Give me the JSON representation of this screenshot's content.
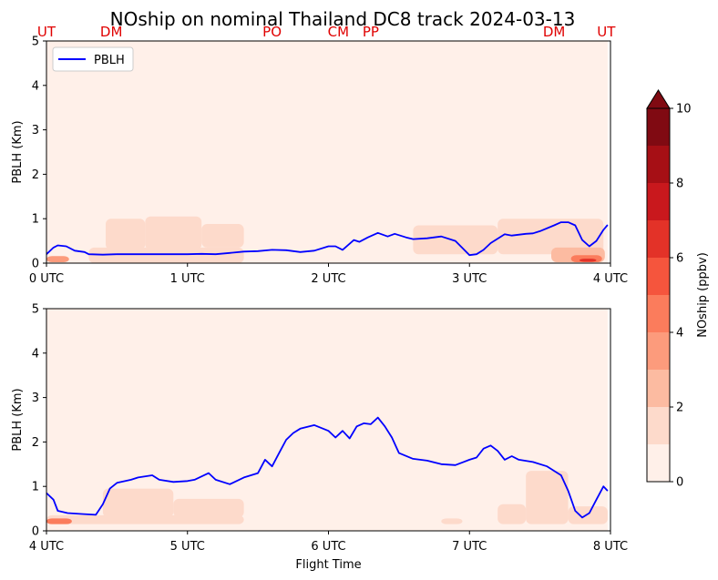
{
  "chart_data": {
    "type": "area",
    "title": "NOship on nominal Thailand DC8 track 2024-03-13",
    "colorbar": {
      "label": "NOship (ppbv)",
      "range": [
        0,
        10
      ],
      "ticks": [
        "0",
        "2",
        "4",
        "6",
        "8",
        "10"
      ],
      "colors": [
        "#fff0e9",
        "#fddacb",
        "#fcbba1",
        "#fc9b7c",
        "#fb7c5c",
        "#f5553d",
        "#e33228",
        "#c9181d",
        "#a60f15",
        "#800a12"
      ],
      "extend": "max"
    },
    "panels": [
      {
        "ylabel": "PBLH (Km)",
        "xlabel": "",
        "ylim": [
          0,
          5
        ],
        "yticks": [
          "0",
          "1",
          "2",
          "3",
          "4",
          "5"
        ],
        "xlim_hours": [
          0,
          4
        ],
        "xticks": [
          "0 UTC",
          "1 UTC",
          "2 UTC",
          "3 UTC",
          "4 UTC"
        ],
        "legend": {
          "location": "top-left",
          "entries": [
            "PBLH"
          ]
        },
        "site_labels": [
          {
            "text": "UT",
            "t": 0.0
          },
          {
            "text": "DM",
            "t": 0.46
          },
          {
            "text": "PO",
            "t": 1.6
          },
          {
            "text": "CM",
            "t": 2.07
          },
          {
            "text": "PP",
            "t": 2.3
          },
          {
            "text": "DM",
            "t": 3.6
          },
          {
            "text": "UT",
            "t": 3.97
          }
        ],
        "series": [
          {
            "name": "PBLH",
            "color": "#0000ff",
            "x": [
              0.0,
              0.05,
              0.08,
              0.14,
              0.2,
              0.27,
              0.3,
              0.4,
              0.5,
              0.6,
              0.7,
              0.8,
              0.9,
              1.0,
              1.1,
              1.2,
              1.3,
              1.4,
              1.5,
              1.6,
              1.7,
              1.8,
              1.9,
              2.0,
              2.05,
              2.1,
              2.18,
              2.22,
              2.28,
              2.35,
              2.42,
              2.47,
              2.55,
              2.6,
              2.7,
              2.8,
              2.9,
              3.0,
              3.05,
              3.1,
              3.15,
              3.25,
              3.3,
              3.4,
              3.45,
              3.5,
              3.6,
              3.65,
              3.7,
              3.75,
              3.8,
              3.85,
              3.9,
              3.95,
              3.98
            ],
            "y": [
              0.2,
              0.35,
              0.4,
              0.38,
              0.28,
              0.25,
              0.2,
              0.19,
              0.2,
              0.2,
              0.2,
              0.2,
              0.2,
              0.2,
              0.21,
              0.2,
              0.23,
              0.26,
              0.27,
              0.3,
              0.29,
              0.25,
              0.28,
              0.38,
              0.38,
              0.3,
              0.52,
              0.48,
              0.58,
              0.68,
              0.6,
              0.66,
              0.58,
              0.54,
              0.56,
              0.6,
              0.5,
              0.18,
              0.2,
              0.3,
              0.45,
              0.65,
              0.62,
              0.66,
              0.67,
              0.72,
              0.85,
              0.92,
              0.92,
              0.85,
              0.52,
              0.38,
              0.5,
              0.75,
              0.86
            ]
          }
        ],
        "noship_field": [
          {
            "t0": 0.0,
            "t1": 3.98,
            "z0": 0.0,
            "z1": 5.0,
            "level": 0
          },
          {
            "t0": 0.42,
            "t1": 0.7,
            "z0": 0.3,
            "z1": 1.0,
            "level": 1
          },
          {
            "t0": 0.7,
            "t1": 1.1,
            "z0": 0.3,
            "z1": 1.05,
            "level": 1
          },
          {
            "t0": 1.1,
            "t1": 1.4,
            "z0": 0.35,
            "z1": 0.88,
            "level": 1
          },
          {
            "t0": 0.3,
            "t1": 1.4,
            "z0": 0.0,
            "z1": 0.35,
            "level": 1
          },
          {
            "t0": 2.6,
            "t1": 3.2,
            "z0": 0.2,
            "z1": 0.85,
            "level": 1
          },
          {
            "t0": 3.2,
            "t1": 3.95,
            "z0": 0.2,
            "z1": 1.0,
            "level": 1
          },
          {
            "t0": 0.0,
            "t1": 0.16,
            "z0": 0.02,
            "z1": 0.16,
            "level": 3
          },
          {
            "t0": 3.58,
            "t1": 3.96,
            "z0": 0.02,
            "z1": 0.35,
            "level": 2
          },
          {
            "t0": 3.72,
            "t1": 3.94,
            "z0": 0.02,
            "z1": 0.18,
            "level": 4
          },
          {
            "t0": 3.78,
            "t1": 3.9,
            "z0": 0.03,
            "z1": 0.1,
            "level": 6
          }
        ]
      },
      {
        "ylabel": "PBLH (Km)",
        "xlabel": "Flight Time",
        "ylim": [
          0,
          5
        ],
        "yticks": [
          "0",
          "1",
          "2",
          "3",
          "4",
          "5"
        ],
        "xlim_hours": [
          4,
          8
        ],
        "xticks": [
          "4 UTC",
          "5 UTC",
          "6 UTC",
          "7 UTC",
          "8 UTC"
        ],
        "series": [
          {
            "name": "PBLH",
            "color": "#0000ff",
            "x": [
              4.0,
              4.05,
              4.08,
              4.15,
              4.25,
              4.35,
              4.4,
              4.45,
              4.5,
              4.6,
              4.65,
              4.75,
              4.8,
              4.9,
              5.0,
              5.05,
              5.15,
              5.2,
              5.3,
              5.4,
              5.5,
              5.55,
              5.6,
              5.65,
              5.7,
              5.75,
              5.8,
              5.9,
              6.0,
              6.05,
              6.1,
              6.15,
              6.2,
              6.25,
              6.3,
              6.35,
              6.4,
              6.45,
              6.5,
              6.6,
              6.7,
              6.8,
              6.9,
              7.0,
              7.05,
              7.1,
              7.15,
              7.2,
              7.25,
              7.3,
              7.35,
              7.45,
              7.55,
              7.65,
              7.7,
              7.75,
              7.8,
              7.85,
              7.9,
              7.95,
              7.98
            ],
            "y": [
              0.85,
              0.7,
              0.45,
              0.4,
              0.38,
              0.36,
              0.6,
              0.95,
              1.08,
              1.15,
              1.2,
              1.25,
              1.15,
              1.1,
              1.12,
              1.15,
              1.3,
              1.15,
              1.05,
              1.2,
              1.3,
              1.6,
              1.45,
              1.75,
              2.05,
              2.2,
              2.3,
              2.38,
              2.25,
              2.1,
              2.25,
              2.08,
              2.35,
              2.42,
              2.4,
              2.55,
              2.35,
              2.1,
              1.75,
              1.62,
              1.58,
              1.5,
              1.48,
              1.6,
              1.65,
              1.85,
              1.92,
              1.8,
              1.6,
              1.68,
              1.6,
              1.55,
              1.45,
              1.25,
              0.9,
              0.45,
              0.3,
              0.4,
              0.7,
              1.0,
              0.9
            ]
          }
        ],
        "noship_field": [
          {
            "t0": 4.0,
            "t1": 7.98,
            "z0": 0.0,
            "z1": 5.0,
            "level": 0
          },
          {
            "t0": 4.0,
            "t1": 5.4,
            "z0": 0.15,
            "z1": 0.35,
            "level": 1
          },
          {
            "t0": 4.4,
            "t1": 4.9,
            "z0": 0.3,
            "z1": 0.95,
            "level": 1
          },
          {
            "t0": 4.9,
            "t1": 5.4,
            "z0": 0.3,
            "z1": 0.72,
            "level": 1
          },
          {
            "t0": 6.8,
            "t1": 6.95,
            "z0": 0.15,
            "z1": 0.28,
            "level": 1
          },
          {
            "t0": 7.2,
            "t1": 7.4,
            "z0": 0.15,
            "z1": 0.6,
            "level": 1
          },
          {
            "t0": 7.4,
            "t1": 7.7,
            "z0": 0.15,
            "z1": 1.35,
            "level": 1
          },
          {
            "t0": 7.7,
            "t1": 7.98,
            "z0": 0.15,
            "z1": 0.55,
            "level": 1
          },
          {
            "t0": 4.0,
            "t1": 4.18,
            "z0": 0.15,
            "z1": 0.28,
            "level": 4
          }
        ]
      }
    ]
  }
}
